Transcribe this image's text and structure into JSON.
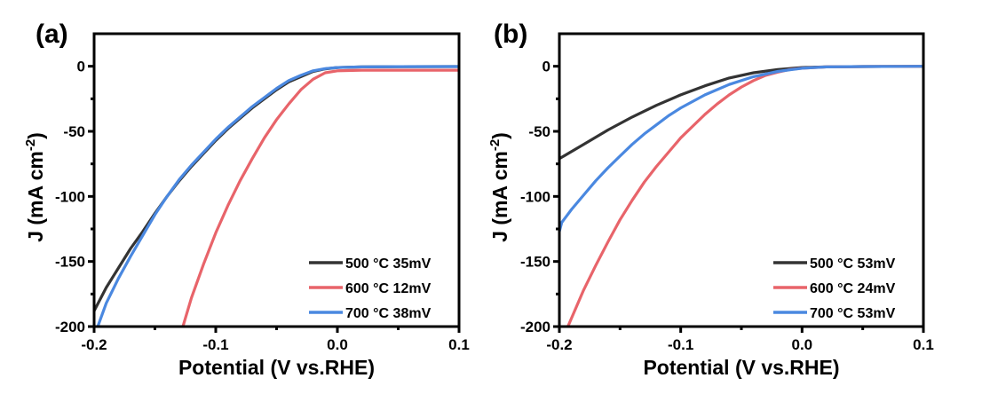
{
  "chart_data": [
    {
      "type": "line",
      "panel_label": "(a)",
      "title": "",
      "xlabel": "Potential (V vs.RHE)",
      "ylabel": "J (mA cm-2)",
      "ylabel_parts": {
        "main": "J (mA cm",
        "sup": "-2",
        "close": ")"
      },
      "xlim": [
        -0.2,
        0.1
      ],
      "ylim": [
        -200,
        25
      ],
      "xticks": [
        -0.2,
        -0.1,
        0.0,
        0.1
      ],
      "xtick_labels": [
        "-0.2",
        "-0.1",
        "0.0",
        "0.1"
      ],
      "yticks": [
        0,
        -50,
        -100,
        -150,
        -200
      ],
      "ytick_labels": [
        "0",
        "-50",
        "-100",
        "-150",
        "-200"
      ],
      "grid": false,
      "legend_position": "bottom-right",
      "series": [
        {
          "name": "500 °C 35mV",
          "color": "#333333",
          "x": [
            -0.2,
            -0.19,
            -0.18,
            -0.17,
            -0.16,
            -0.15,
            -0.14,
            -0.13,
            -0.12,
            -0.11,
            -0.1,
            -0.09,
            -0.08,
            -0.07,
            -0.06,
            -0.05,
            -0.04,
            -0.03,
            -0.02,
            -0.01,
            0.0,
            0.02,
            0.05,
            0.1
          ],
          "y": [
            -188,
            -170,
            -155,
            -140,
            -127,
            -113,
            -100,
            -88,
            -77,
            -67,
            -57,
            -48,
            -40,
            -32,
            -25,
            -18,
            -12,
            -8,
            -4,
            -2,
            -1,
            -0.5,
            -0.3,
            -0.2
          ]
        },
        {
          "name": "600 °C 12mV",
          "color": "#e8646a",
          "x": [
            -0.127,
            -0.12,
            -0.11,
            -0.1,
            -0.09,
            -0.08,
            -0.07,
            -0.06,
            -0.05,
            -0.04,
            -0.03,
            -0.02,
            -0.01,
            0.0,
            0.02,
            0.05,
            0.1
          ],
          "y": [
            -200,
            -178,
            -152,
            -128,
            -107,
            -88,
            -71,
            -55,
            -41,
            -29,
            -18,
            -10,
            -5,
            -3.5,
            -3,
            -3,
            -3
          ]
        },
        {
          "name": "700 °C 38mV",
          "color": "#4a88e0",
          "x": [
            -0.197,
            -0.19,
            -0.18,
            -0.17,
            -0.16,
            -0.15,
            -0.14,
            -0.13,
            -0.12,
            -0.11,
            -0.1,
            -0.09,
            -0.08,
            -0.07,
            -0.06,
            -0.05,
            -0.04,
            -0.03,
            -0.02,
            -0.01,
            0.0,
            0.02,
            0.05,
            0.1
          ],
          "y": [
            -200,
            -182,
            -163,
            -146,
            -130,
            -114,
            -100,
            -87,
            -76,
            -66,
            -56,
            -47,
            -39,
            -31,
            -24,
            -17,
            -11,
            -7,
            -3.5,
            -1.8,
            -1,
            -0.5,
            -0.3,
            -0.2
          ]
        }
      ]
    },
    {
      "type": "line",
      "panel_label": "(b)",
      "title": "",
      "xlabel": "Potential (V vs.RHE)",
      "ylabel": "J (mA cm-2)",
      "ylabel_parts": {
        "main": "J (mA cm",
        "sup": "-2",
        "close": ")"
      },
      "xlim": [
        -0.2,
        0.1
      ],
      "ylim": [
        -200,
        25
      ],
      "xticks": [
        -0.2,
        -0.1,
        0.0,
        0.1
      ],
      "xtick_labels": [
        "-0.2",
        "-0.1",
        "0.0",
        "0.1"
      ],
      "yticks": [
        0,
        -50,
        -100,
        -150,
        -200
      ],
      "ytick_labels": [
        "0",
        "-50",
        "-100",
        "-150",
        "-200"
      ],
      "grid": false,
      "legend_position": "bottom-right",
      "series": [
        {
          "name": "500 °C 53mV",
          "color": "#333333",
          "x": [
            -0.2,
            -0.18,
            -0.16,
            -0.14,
            -0.12,
            -0.1,
            -0.08,
            -0.06,
            -0.04,
            -0.02,
            0.0,
            0.02,
            0.05,
            0.1
          ],
          "y": [
            -71,
            -60,
            -49,
            -39,
            -30,
            -22,
            -15,
            -9,
            -5,
            -2.5,
            -1,
            -0.5,
            -0.2,
            0
          ]
        },
        {
          "name": "600 °C 24mV",
          "color": "#e8646a",
          "x": [
            -0.193,
            -0.18,
            -0.17,
            -0.16,
            -0.15,
            -0.14,
            -0.13,
            -0.12,
            -0.11,
            -0.1,
            -0.09,
            -0.08,
            -0.07,
            -0.06,
            -0.05,
            -0.04,
            -0.03,
            -0.02,
            -0.01,
            0.0,
            0.02,
            0.05,
            0.1
          ],
          "y": [
            -200,
            -172,
            -153,
            -135,
            -118,
            -103,
            -89,
            -77,
            -66,
            -55,
            -46,
            -37,
            -29,
            -22,
            -16,
            -11,
            -7,
            -4.5,
            -2.5,
            -1.5,
            -0.5,
            -0.2,
            0
          ]
        },
        {
          "name": "700 °C 53mV",
          "color": "#4a88e0",
          "x": [
            -0.2,
            -0.198,
            -0.19,
            -0.18,
            -0.17,
            -0.16,
            -0.15,
            -0.14,
            -0.13,
            -0.12,
            -0.11,
            -0.1,
            -0.08,
            -0.06,
            -0.04,
            -0.02,
            0.0,
            0.02,
            0.05,
            0.1
          ],
          "y": [
            -127,
            -120,
            -110,
            -99,
            -88,
            -78,
            -69,
            -60,
            -52,
            -45,
            -38,
            -32,
            -22,
            -14,
            -8,
            -4,
            -1.5,
            -0.5,
            -0.2,
            0
          ]
        }
      ]
    }
  ]
}
